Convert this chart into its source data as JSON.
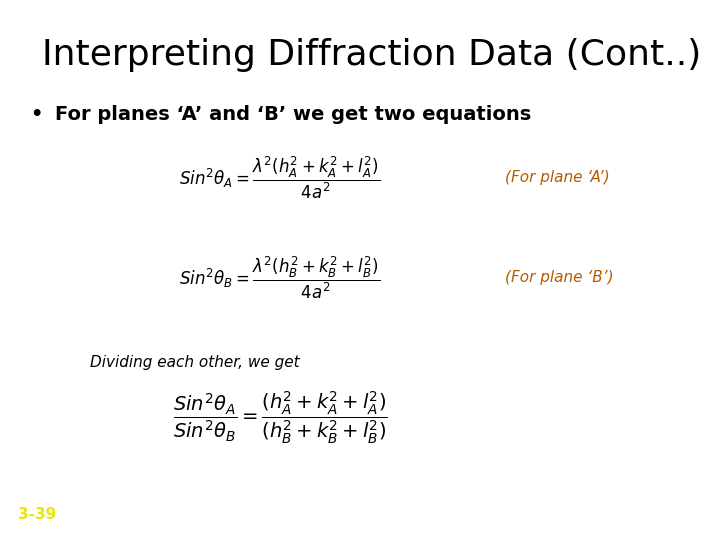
{
  "title": "Interpreting Diffraction Data (Cont..)",
  "bullet": "For planes ‘A’ and ‘B’ we get two equations",
  "label1": "(For plane ‘A’)",
  "label2": "(For plane ‘B’)",
  "dividing_text": "Dividing each other, we get",
  "page_number": "3-39",
  "bg_color": "#ffffff",
  "title_color": "#000000",
  "bullet_color": "#000000",
  "label_color": "#b85a00",
  "page_color": "#e8e800",
  "eq_color": "#000000",
  "dividing_color": "#000000",
  "title_fontsize": 26,
  "bullet_fontsize": 14,
  "eq_fontsize": 12,
  "label_fontsize": 11,
  "div_fontsize": 11,
  "page_fontsize": 11
}
